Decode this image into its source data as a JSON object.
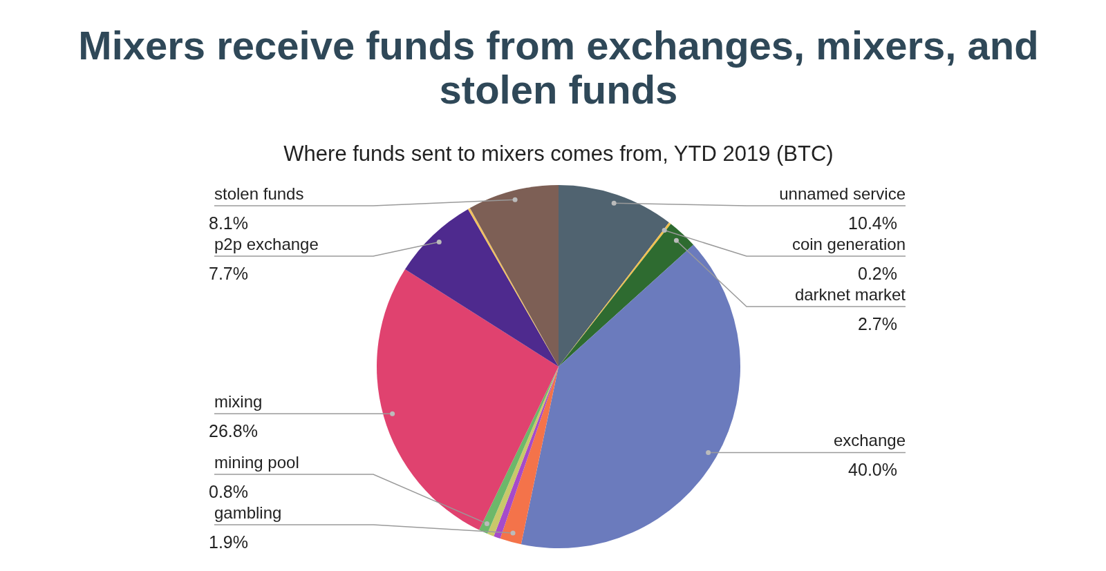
{
  "chart_data": {
    "type": "pie",
    "title": "Mixers receive funds from exchanges, mixers, and stolen funds",
    "subtitle": "Where funds sent to mixers comes from, YTD 2019 (BTC)",
    "categories": [
      "unnamed service",
      "coin generation",
      "darknet market",
      "exchange",
      "gambling",
      null,
      null,
      "mining pool",
      "mixing",
      "p2p exchange",
      null,
      "stolen funds"
    ],
    "values": [
      10.4,
      0.2,
      2.7,
      40.0,
      1.9,
      0.6,
      0.6,
      0.8,
      26.8,
      7.7,
      0.2,
      8.1
    ],
    "value_labels": [
      "10.4%",
      "0.2%",
      "2.7%",
      "40.0%",
      "1.9%",
      null,
      null,
      "0.8%",
      "26.8%",
      "7.7%",
      null,
      "8.1%"
    ],
    "colors": [
      "#506370",
      "#f2c14e",
      "#2e6b30",
      "#6b7bbd",
      "#f4734a",
      "#a64bc9",
      "#c9c86a",
      "#6cb86a",
      "#e0426f",
      "#4e2a8e",
      "#f0c060",
      "#7d5f55"
    ]
  }
}
